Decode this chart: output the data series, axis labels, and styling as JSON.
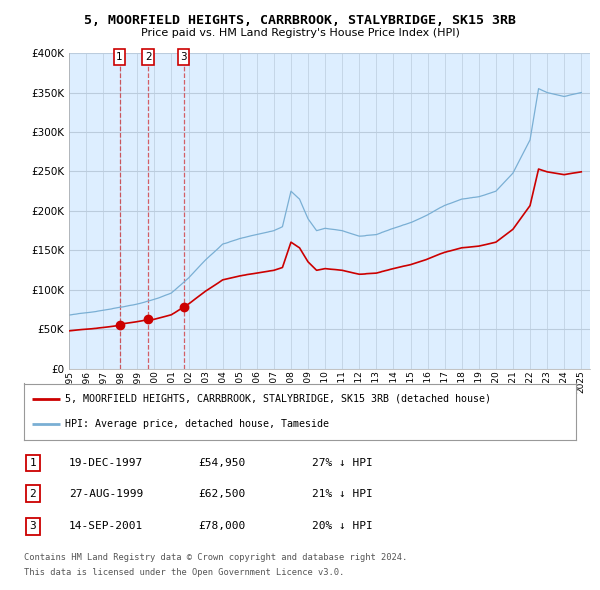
{
  "title": "5, MOORFIELD HEIGHTS, CARRBROOK, STALYBRIDGE, SK15 3RB",
  "subtitle": "Price paid vs. HM Land Registry's House Price Index (HPI)",
  "sale_prices": [
    54950,
    62500,
    78000
  ],
  "sale_labels": [
    "1",
    "2",
    "3"
  ],
  "sale_date_labels": [
    "19-DEC-1997",
    "27-AUG-1999",
    "14-SEP-2001"
  ],
  "sale_price_labels": [
    "£54,950",
    "£62,500",
    "£78,000"
  ],
  "sale_hpi_labels": [
    "27% ↓ HPI",
    "21% ↓ HPI",
    "20% ↓ HPI"
  ],
  "legend_line1": "5, MOORFIELD HEIGHTS, CARRBROOK, STALYBRIDGE, SK15 3RB (detached house)",
  "legend_line2": "HPI: Average price, detached house, Tameside",
  "footer1": "Contains HM Land Registry data © Crown copyright and database right 2024.",
  "footer2": "This data is licensed under the Open Government Licence v3.0.",
  "line_color": "#cc0000",
  "hpi_color": "#7aafd4",
  "chart_bg": "#ddeeff",
  "background_color": "#ffffff",
  "grid_color": "#bbccdd",
  "ylim": [
    0,
    400000
  ],
  "yticks": [
    0,
    50000,
    100000,
    150000,
    200000,
    250000,
    300000,
    350000,
    400000
  ],
  "sale1_year": 1997.96,
  "sale2_year": 1999.65,
  "sale3_year": 2001.71
}
